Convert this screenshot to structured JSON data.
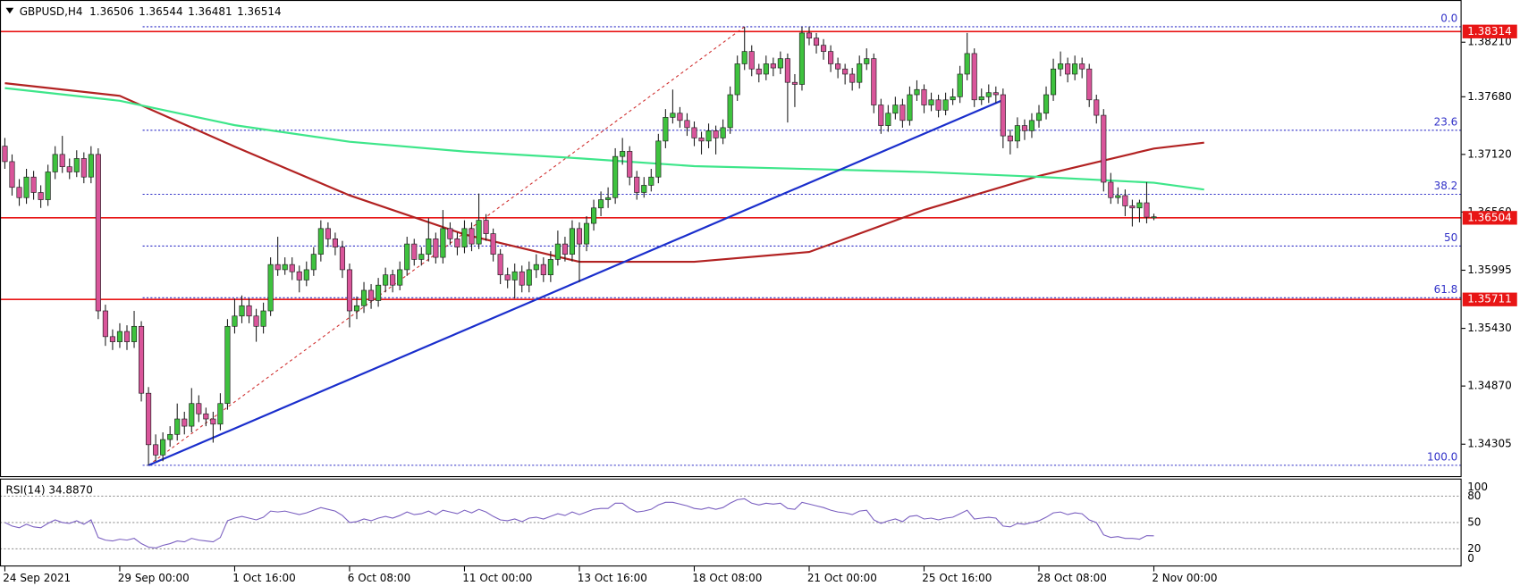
{
  "chart_data": {
    "type": "candlestick",
    "title": "GBPUSD,H4",
    "quote": [
      1.36506,
      1.36544,
      1.36481,
      1.36514
    ],
    "up_color": "#3ec23e",
    "down_color": "#d9559a",
    "wick_color": "#1e1e1e",
    "xlim": [
      -0.68,
      202.85
    ],
    "xticks": [
      {
        "value": 0,
        "label": "24 Sep 2021"
      },
      {
        "value": 16,
        "label": "29 Sep 00:00"
      },
      {
        "value": 32,
        "label": "1 Oct 16:00"
      },
      {
        "value": 48,
        "label": "6 Oct 08:00"
      },
      {
        "value": 64,
        "label": "11 Oct 00:00"
      },
      {
        "value": 80,
        "label": "13 Oct 16:00"
      },
      {
        "value": 96,
        "label": "18 Oct 08:00"
      },
      {
        "value": 112,
        "label": "21 Oct 00:00"
      },
      {
        "value": 128,
        "label": "25 Oct 16:00"
      },
      {
        "value": 144,
        "label": "28 Oct 08:00"
      },
      {
        "value": 160,
        "label": "2 Nov 00:00"
      }
    ],
    "ylim": [
      1.3399,
      1.3862
    ],
    "yticks": [
      {
        "value": 1.3821,
        "label": "1.38210"
      },
      {
        "value": 1.3768,
        "label": "1.37680"
      },
      {
        "value": 1.3712,
        "label": "1.37120"
      },
      {
        "value": 1.3656,
        "label": "1.36560"
      },
      {
        "value": 1.35995,
        "label": "1.35995"
      },
      {
        "value": 1.3543,
        "label": "1.35430"
      },
      {
        "value": 1.3487,
        "label": "1.34870"
      },
      {
        "value": 1.34305,
        "label": "1.34305"
      }
    ],
    "candles": [
      [
        1.372,
        1.3728,
        1.3698,
        1.3705
      ],
      [
        1.3705,
        1.3712,
        1.3672,
        1.368
      ],
      [
        1.368,
        1.3688,
        1.3662,
        1.367
      ],
      [
        1.367,
        1.3698,
        1.3664,
        1.369
      ],
      [
        1.369,
        1.3696,
        1.3668,
        1.3675
      ],
      [
        1.3675,
        1.3682,
        1.366,
        1.3668
      ],
      [
        1.3668,
        1.3702,
        1.3662,
        1.3695
      ],
      [
        1.3695,
        1.372,
        1.3688,
        1.3712
      ],
      [
        1.3712,
        1.373,
        1.3694,
        1.37
      ],
      [
        1.37,
        1.3708,
        1.3688,
        1.3695
      ],
      [
        1.3695,
        1.3716,
        1.369,
        1.3708
      ],
      [
        1.3708,
        1.3714,
        1.3684,
        1.369
      ],
      [
        1.369,
        1.372,
        1.3684,
        1.3712
      ],
      [
        1.3712,
        1.3718,
        1.3552,
        1.356
      ],
      [
        1.356,
        1.3566,
        1.3526,
        1.3535
      ],
      [
        1.3535,
        1.3542,
        1.3522,
        1.353
      ],
      [
        1.353,
        1.3548,
        1.3524,
        1.354
      ],
      [
        1.354,
        1.3546,
        1.3522,
        1.353
      ],
      [
        1.353,
        1.356,
        1.3524,
        1.3545
      ],
      [
        1.3545,
        1.355,
        1.3472,
        1.348
      ],
      [
        1.348,
        1.3486,
        1.341,
        1.343
      ],
      [
        1.343,
        1.344,
        1.3414,
        1.342
      ],
      [
        1.342,
        1.3442,
        1.3414,
        1.3435
      ],
      [
        1.3435,
        1.3448,
        1.3428,
        1.344
      ],
      [
        1.344,
        1.347,
        1.3434,
        1.3455
      ],
      [
        1.3455,
        1.3462,
        1.344,
        1.3448
      ],
      [
        1.3448,
        1.3485,
        1.3442,
        1.347
      ],
      [
        1.347,
        1.3478,
        1.3452,
        1.346
      ],
      [
        1.346,
        1.3466,
        1.3448,
        1.3455
      ],
      [
        1.3455,
        1.3462,
        1.3432,
        1.345
      ],
      [
        1.345,
        1.348,
        1.3444,
        1.347
      ],
      [
        1.347,
        1.3552,
        1.3464,
        1.3545
      ],
      [
        1.3545,
        1.3572,
        1.3538,
        1.3555
      ],
      [
        1.3555,
        1.3575,
        1.3548,
        1.3565
      ],
      [
        1.3565,
        1.3572,
        1.3548,
        1.3555
      ],
      [
        1.3555,
        1.3562,
        1.353,
        1.3545
      ],
      [
        1.3545,
        1.3568,
        1.3538,
        1.356
      ],
      [
        1.356,
        1.3612,
        1.3555,
        1.3605
      ],
      [
        1.3605,
        1.3632,
        1.3594,
        1.36
      ],
      [
        1.36,
        1.3612,
        1.3595,
        1.3605
      ],
      [
        1.3605,
        1.3612,
        1.359,
        1.3598
      ],
      [
        1.3598,
        1.3604,
        1.3578,
        1.359
      ],
      [
        1.359,
        1.3608,
        1.3584,
        1.36
      ],
      [
        1.36,
        1.3622,
        1.3594,
        1.3615
      ],
      [
        1.3615,
        1.3648,
        1.3608,
        1.364
      ],
      [
        1.364,
        1.3646,
        1.3622,
        1.363
      ],
      [
        1.363,
        1.3636,
        1.3614,
        1.3622
      ],
      [
        1.3622,
        1.3628,
        1.3592,
        1.36
      ],
      [
        1.36,
        1.3606,
        1.3544,
        1.356
      ],
      [
        1.356,
        1.3574,
        1.3552,
        1.3565
      ],
      [
        1.3565,
        1.3588,
        1.3558,
        1.358
      ],
      [
        1.358,
        1.3586,
        1.3562,
        1.357
      ],
      [
        1.357,
        1.3592,
        1.3564,
        1.3585
      ],
      [
        1.3585,
        1.3602,
        1.3578,
        1.3595
      ],
      [
        1.3595,
        1.36,
        1.3578,
        1.3585
      ],
      [
        1.3585,
        1.3608,
        1.358,
        1.36
      ],
      [
        1.36,
        1.3632,
        1.3594,
        1.3625
      ],
      [
        1.3625,
        1.363,
        1.3604,
        1.361
      ],
      [
        1.361,
        1.3622,
        1.3604,
        1.3615
      ],
      [
        1.3615,
        1.365,
        1.3608,
        1.363
      ],
      [
        1.363,
        1.3636,
        1.3606,
        1.3612
      ],
      [
        1.3612,
        1.3658,
        1.3606,
        1.364
      ],
      [
        1.364,
        1.3646,
        1.3624,
        1.363
      ],
      [
        1.363,
        1.3636,
        1.3614,
        1.3622
      ],
      [
        1.3622,
        1.3648,
        1.3616,
        1.364
      ],
      [
        1.364,
        1.3646,
        1.3618,
        1.3625
      ],
      [
        1.3625,
        1.3674,
        1.362,
        1.3648
      ],
      [
        1.3648,
        1.3654,
        1.3628,
        1.3635
      ],
      [
        1.3635,
        1.364,
        1.3608,
        1.3615
      ],
      [
        1.3615,
        1.362,
        1.3586,
        1.3595
      ],
      [
        1.3595,
        1.3602,
        1.3582,
        1.359
      ],
      [
        1.359,
        1.3606,
        1.3572,
        1.3598
      ],
      [
        1.3598,
        1.3604,
        1.3578,
        1.3585
      ],
      [
        1.3585,
        1.3608,
        1.3578,
        1.36
      ],
      [
        1.36,
        1.3615,
        1.3592,
        1.3605
      ],
      [
        1.3605,
        1.3612,
        1.3588,
        1.3595
      ],
      [
        1.3595,
        1.3618,
        1.3588,
        1.361
      ],
      [
        1.361,
        1.3638,
        1.3604,
        1.3625
      ],
      [
        1.3625,
        1.3632,
        1.3608,
        1.3615
      ],
      [
        1.3615,
        1.3648,
        1.3608,
        1.364
      ],
      [
        1.364,
        1.3646,
        1.3588,
        1.3625
      ],
      [
        1.3625,
        1.3652,
        1.3618,
        1.3645
      ],
      [
        1.3645,
        1.3668,
        1.3638,
        1.366
      ],
      [
        1.366,
        1.3676,
        1.3652,
        1.3668
      ],
      [
        1.3668,
        1.368,
        1.366,
        1.367
      ],
      [
        1.367,
        1.3718,
        1.3664,
        1.371
      ],
      [
        1.371,
        1.3728,
        1.3702,
        1.3715
      ],
      [
        1.3715,
        1.372,
        1.3682,
        1.369
      ],
      [
        1.369,
        1.3696,
        1.3668,
        1.3675
      ],
      [
        1.3675,
        1.369,
        1.367,
        1.3682
      ],
      [
        1.3682,
        1.3698,
        1.3676,
        1.369
      ],
      [
        1.369,
        1.3732,
        1.3684,
        1.3725
      ],
      [
        1.3725,
        1.3756,
        1.3718,
        1.3748
      ],
      [
        1.3748,
        1.3775,
        1.3742,
        1.3752
      ],
      [
        1.3752,
        1.3758,
        1.3738,
        1.3745
      ],
      [
        1.3745,
        1.3752,
        1.373,
        1.3738
      ],
      [
        1.3738,
        1.3744,
        1.372,
        1.3728
      ],
      [
        1.3728,
        1.3734,
        1.3712,
        1.3725
      ],
      [
        1.3725,
        1.3742,
        1.3718,
        1.3735
      ],
      [
        1.3735,
        1.374,
        1.3712,
        1.3728
      ],
      [
        1.3728,
        1.3746,
        1.3722,
        1.3738
      ],
      [
        1.3738,
        1.3778,
        1.3732,
        1.377
      ],
      [
        1.377,
        1.3808,
        1.3764,
        1.38
      ],
      [
        1.38,
        1.3836,
        1.3794,
        1.3812
      ],
      [
        1.3812,
        1.3818,
        1.3788,
        1.3795
      ],
      [
        1.3795,
        1.38,
        1.3782,
        1.379
      ],
      [
        1.379,
        1.3808,
        1.3784,
        1.38
      ],
      [
        1.38,
        1.3806,
        1.3788,
        1.3796
      ],
      [
        1.3796,
        1.3812,
        1.379,
        1.3805
      ],
      [
        1.3805,
        1.381,
        1.3743,
        1.3782
      ],
      [
        1.3782,
        1.379,
        1.3758,
        1.378
      ],
      [
        1.378,
        1.3836,
        1.3774,
        1.383
      ],
      [
        1.383,
        1.3836,
        1.3818,
        1.3825
      ],
      [
        1.3825,
        1.383,
        1.381,
        1.3818
      ],
      [
        1.3818,
        1.3824,
        1.3804,
        1.3812
      ],
      [
        1.3812,
        1.3818,
        1.3792,
        1.38
      ],
      [
        1.38,
        1.3806,
        1.3786,
        1.3795
      ],
      [
        1.3795,
        1.38,
        1.378,
        1.379
      ],
      [
        1.379,
        1.3796,
        1.3774,
        1.3782
      ],
      [
        1.3782,
        1.3808,
        1.3776,
        1.38
      ],
      [
        1.38,
        1.3815,
        1.3794,
        1.3805
      ],
      [
        1.3805,
        1.381,
        1.3752,
        1.376
      ],
      [
        1.376,
        1.3766,
        1.3732,
        1.374
      ],
      [
        1.374,
        1.376,
        1.3734,
        1.3752
      ],
      [
        1.3752,
        1.3768,
        1.3746,
        1.376
      ],
      [
        1.376,
        1.3766,
        1.3738,
        1.3745
      ],
      [
        1.3745,
        1.3778,
        1.374,
        1.377
      ],
      [
        1.377,
        1.3784,
        1.3764,
        1.3775
      ],
      [
        1.3775,
        1.378,
        1.3752,
        1.376
      ],
      [
        1.376,
        1.3772,
        1.3754,
        1.3765
      ],
      [
        1.3765,
        1.377,
        1.3748,
        1.3755
      ],
      [
        1.3755,
        1.3772,
        1.375,
        1.3765
      ],
      [
        1.3765,
        1.3776,
        1.376,
        1.3768
      ],
      [
        1.3768,
        1.3798,
        1.3762,
        1.379
      ],
      [
        1.379,
        1.383,
        1.3784,
        1.381
      ],
      [
        1.381,
        1.3815,
        1.3758,
        1.3765
      ],
      [
        1.3765,
        1.3776,
        1.376,
        1.3768
      ],
      [
        1.3768,
        1.378,
        1.3762,
        1.3772
      ],
      [
        1.3772,
        1.3778,
        1.3762,
        1.377
      ],
      [
        1.377,
        1.3776,
        1.3718,
        1.373
      ],
      [
        1.373,
        1.3736,
        1.3712,
        1.3725
      ],
      [
        1.3725,
        1.3748,
        1.3718,
        1.374
      ],
      [
        1.374,
        1.3746,
        1.3726,
        1.3735
      ],
      [
        1.3735,
        1.3752,
        1.3728,
        1.3745
      ],
      [
        1.3745,
        1.376,
        1.3738,
        1.3752
      ],
      [
        1.3752,
        1.3778,
        1.3746,
        1.377
      ],
      [
        1.377,
        1.3805,
        1.3764,
        1.3795
      ],
      [
        1.3795,
        1.3812,
        1.3788,
        1.38
      ],
      [
        1.38,
        1.3806,
        1.3782,
        1.379
      ],
      [
        1.379,
        1.3808,
        1.3784,
        1.38
      ],
      [
        1.38,
        1.3806,
        1.3786,
        1.3795
      ],
      [
        1.3795,
        1.38,
        1.3758,
        1.3765
      ],
      [
        1.3765,
        1.377,
        1.3742,
        1.375
      ],
      [
        1.375,
        1.3756,
        1.3676,
        1.3685
      ],
      [
        1.3685,
        1.3694,
        1.3664,
        1.367
      ],
      [
        1.367,
        1.368,
        1.3664,
        1.3672
      ],
      [
        1.3672,
        1.3678,
        1.3652,
        1.3662
      ],
      [
        1.3662,
        1.3668,
        1.3642,
        1.366
      ],
      [
        1.366,
        1.3668,
        1.3646,
        1.3665
      ],
      [
        1.3665,
        1.3685,
        1.3645,
        1.3651
      ],
      [
        1.36506,
        1.36544,
        1.36481,
        1.36514
      ]
    ],
    "moving_averages": [
      {
        "color": "#b22222",
        "x": [
          0,
          16,
          32,
          48,
          64,
          80,
          96,
          112,
          128,
          144,
          160,
          167
        ],
        "values": [
          1.37812,
          1.37689,
          1.37196,
          1.36722,
          1.36343,
          1.36077,
          1.36077,
          1.36172,
          1.3658,
          1.36911,
          1.37177,
          1.37234
        ]
      },
      {
        "color": "#3ee68a",
        "x": [
          0,
          16,
          32,
          48,
          64,
          80,
          96,
          112,
          128,
          144,
          160,
          167
        ],
        "values": [
          1.37764,
          1.37641,
          1.37404,
          1.37243,
          1.37148,
          1.37082,
          1.37006,
          1.36978,
          1.36949,
          1.36902,
          1.36845,
          1.36779
        ]
      }
    ],
    "trendline": {
      "color": "#1a2ecc",
      "x": [
        20,
        138.7
      ],
      "values": [
        1.341,
        1.3764
      ]
    },
    "hlines": {
      "color": "#e81515",
      "values": [
        1.38314,
        1.36504,
        1.35711
      ]
    },
    "fib": {
      "color": "#3232c8",
      "line_color": "#d03030",
      "x": [
        20,
        103
      ],
      "low": 1.341,
      "high": 1.3836,
      "levels": [
        {
          "value": 0,
          "label": "0.0"
        },
        23.6,
        38.2,
        50,
        61.8,
        {
          "value": 100,
          "label": "100.0"
        }
      ]
    },
    "rsi": {
      "label": "RSI(14) 34.8870",
      "color": "#7a5fc0",
      "ylim": [
        0,
        100
      ],
      "yticks": [
        0,
        20,
        50,
        80,
        100
      ],
      "values": [
        50,
        46,
        44,
        48,
        45,
        44,
        49,
        53,
        50,
        49,
        52,
        48,
        53,
        33,
        30,
        29,
        31,
        30,
        32,
        26,
        22,
        21,
        24,
        26,
        29,
        28,
        32,
        30,
        29,
        28,
        33,
        52,
        55,
        57,
        55,
        53,
        56,
        63,
        62,
        63,
        61,
        59,
        61,
        64,
        67,
        65,
        63,
        58,
        50,
        51,
        54,
        52,
        55,
        57,
        55,
        58,
        62,
        59,
        60,
        63,
        59,
        64,
        62,
        60,
        64,
        61,
        65,
        62,
        57,
        53,
        52,
        54,
        51,
        55,
        56,
        54,
        57,
        60,
        58,
        62,
        59,
        62,
        65,
        66,
        66,
        72,
        72,
        66,
        62,
        63,
        65,
        70,
        73,
        73,
        71,
        69,
        66,
        65,
        67,
        65,
        67,
        72,
        76,
        77,
        72,
        70,
        72,
        71,
        72,
        66,
        65,
        73,
        71,
        69,
        67,
        64,
        62,
        61,
        59,
        63,
        64,
        53,
        49,
        52,
        54,
        51,
        57,
        58,
        54,
        55,
        53,
        55,
        56,
        60,
        64,
        54,
        55,
        56,
        55,
        46,
        45,
        49,
        48,
        50,
        52,
        56,
        61,
        62,
        59,
        61,
        60,
        53,
        50,
        36,
        33,
        34,
        32,
        32,
        31,
        35,
        34.887
      ]
    }
  }
}
